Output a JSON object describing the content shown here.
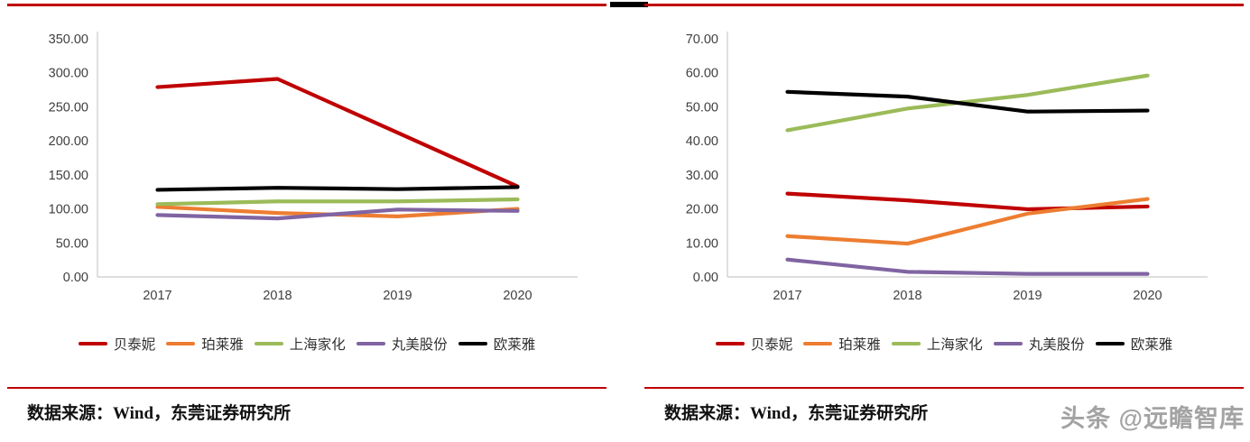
{
  "page": {
    "source_left": "数据来源：Wind，东莞证券研究所",
    "source_right": "数据来源：Wind，东莞证券研究所",
    "watermark": "头条 @远瞻智库"
  },
  "colors": {
    "accent_red": "#C00000",
    "axis_gray": "#BFBFBF",
    "series_red": "#C00000",
    "series_orange": "#ED7D31",
    "series_green": "#9BBB59",
    "series_purple": "#8064A2",
    "series_black": "#000000",
    "watermark_gray": "#a3a3a3"
  },
  "chart_data": [
    {
      "type": "line",
      "title": "",
      "xlabel": "",
      "ylabel": "",
      "categories": [
        "2017",
        "2018",
        "2019",
        "2020"
      ],
      "series": [
        {
          "name": "贝泰妮",
          "color": "#C00000",
          "values": [
            279,
            291,
            212,
            133
          ]
        },
        {
          "name": "珀莱雅",
          "color": "#ED7D31",
          "values": [
            103,
            94,
            89,
            100
          ]
        },
        {
          "name": "上海家化",
          "color": "#9BBB59",
          "values": [
            107,
            111,
            111,
            114
          ]
        },
        {
          "name": "丸美股份",
          "color": "#8064A2",
          "values": [
            91,
            86,
            99,
            97
          ]
        },
        {
          "name": "欧莱雅",
          "color": "#000000",
          "values": [
            128,
            131,
            129,
            132
          ]
        }
      ],
      "ylim": [
        0,
        350
      ],
      "ystep": 50,
      "ytick_decimals": 2,
      "grid": false,
      "legend_position": "bottom"
    },
    {
      "type": "line",
      "title": "",
      "xlabel": "",
      "ylabel": "",
      "categories": [
        "2017",
        "2018",
        "2019",
        "2020"
      ],
      "series": [
        {
          "name": "贝泰妮",
          "color": "#C00000",
          "values": [
            24.5,
            22.5,
            19.9,
            20.7
          ]
        },
        {
          "name": "珀莱雅",
          "color": "#ED7D31",
          "values": [
            12.0,
            9.8,
            18.6,
            22.9
          ]
        },
        {
          "name": "上海家化",
          "color": "#9BBB59",
          "values": [
            43.1,
            49.5,
            53.5,
            59.2
          ]
        },
        {
          "name": "丸美股份",
          "color": "#8064A2",
          "values": [
            5.1,
            1.5,
            0.9,
            0.9
          ]
        },
        {
          "name": "欧莱雅",
          "color": "#000000",
          "values": [
            54.4,
            53.0,
            48.6,
            48.9
          ]
        }
      ],
      "ylim": [
        0,
        70
      ],
      "ystep": 10,
      "ytick_decimals": 2,
      "grid": false,
      "legend_position": "bottom"
    }
  ]
}
